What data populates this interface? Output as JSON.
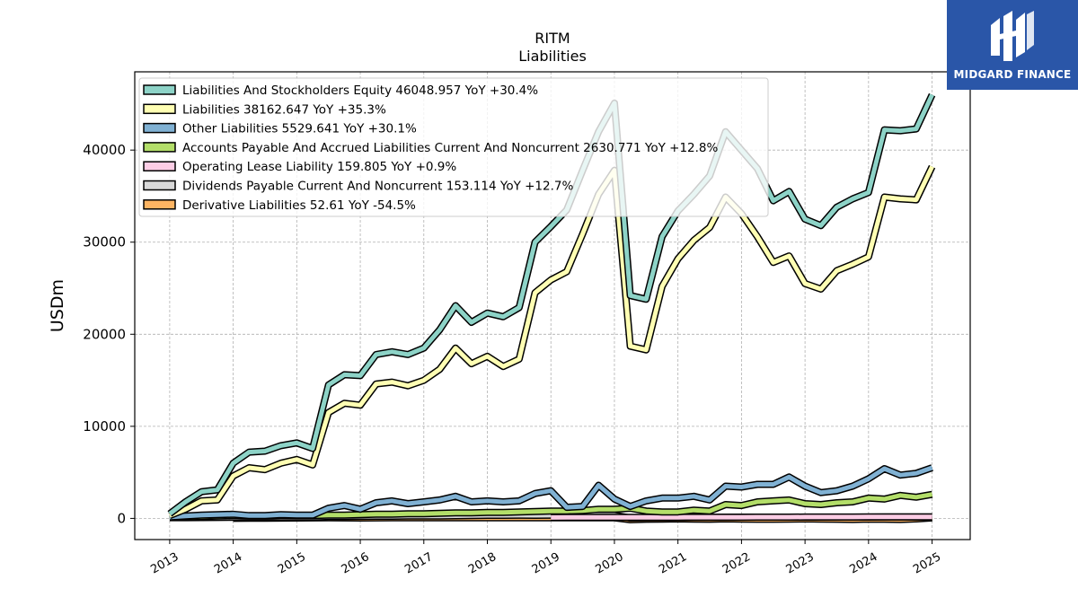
{
  "brand": {
    "name": "MIDGARD FINANCE",
    "bg_color": "#2a56a8"
  },
  "chart_data": {
    "type": "line",
    "title": "RITM",
    "subtitle": "Liabilities",
    "ylabel": "USDm",
    "xlabel": "",
    "ylim": [
      -2300,
      48500
    ],
    "xlim": [
      2012.45,
      2025.6
    ],
    "yticks": [
      0,
      10000,
      20000,
      30000,
      40000
    ],
    "xticks": [
      "2013",
      "2014",
      "2015",
      "2016",
      "2017",
      "2018",
      "2019",
      "2020",
      "2021",
      "2022",
      "2023",
      "2024",
      "2025"
    ],
    "grid": true,
    "legend_position": "top-left",
    "series": [
      {
        "name": "Liabilities And Stockholders Equity",
        "legend_label": "Liabilities And Stockholders Equity  46048.957 YoY +30.4%",
        "color": "#8dd3c7",
        "x": [
          2013.0,
          2013.25,
          2013.5,
          2013.75,
          2014.0,
          2014.25,
          2014.5,
          2014.75,
          2015.0,
          2015.25,
          2015.5,
          2015.75,
          2016.0,
          2016.25,
          2016.5,
          2016.75,
          2017.0,
          2017.25,
          2017.5,
          2017.75,
          2018.0,
          2018.25,
          2018.5,
          2018.75,
          2019.0,
          2019.25,
          2019.5,
          2019.75,
          2020.0,
          2020.25,
          2020.5,
          2020.75,
          2021.0,
          2021.25,
          2021.5,
          2021.75,
          2022.0,
          2022.25,
          2022.5,
          2022.75,
          2023.0,
          2023.25,
          2023.5,
          2023.75,
          2024.0,
          2024.25,
          2024.5,
          2024.75,
          2025.0
        ],
        "values": [
          500,
          1800,
          2900,
          3100,
          6000,
          7200,
          7300,
          7900,
          8200,
          7600,
          14500,
          15600,
          15500,
          17800,
          18100,
          17800,
          18500,
          20500,
          23100,
          21300,
          22300,
          21900,
          22900,
          30000,
          31700,
          33500,
          37800,
          42000,
          45100,
          24200,
          23800,
          30600,
          33400,
          35200,
          37200,
          42000,
          40000,
          38000,
          34500,
          35500,
          32500,
          31800,
          33800,
          34700,
          35400,
          42200,
          42100,
          42300,
          46000
        ]
      },
      {
        "name": "Liabilities",
        "legend_label": "Liabilities  38162.647 YoY +35.3%",
        "color": "#ffffb3",
        "x": [
          2013.0,
          2013.25,
          2013.5,
          2013.75,
          2014.0,
          2014.25,
          2014.5,
          2014.75,
          2015.0,
          2015.25,
          2015.5,
          2015.75,
          2016.0,
          2016.25,
          2016.5,
          2016.75,
          2017.0,
          2017.25,
          2017.5,
          2017.75,
          2018.0,
          2018.25,
          2018.5,
          2018.75,
          2019.0,
          2019.25,
          2019.5,
          2019.75,
          2020.0,
          2020.25,
          2020.5,
          2020.75,
          2021.0,
          2021.25,
          2021.5,
          2021.75,
          2022.0,
          2022.25,
          2022.5,
          2022.75,
          2023.0,
          2023.25,
          2023.5,
          2023.75,
          2024.0,
          2024.25,
          2024.5,
          2024.75,
          2025.0
        ],
        "values": [
          300,
          1000,
          1900,
          2000,
          4600,
          5500,
          5300,
          6000,
          6400,
          5800,
          11500,
          12500,
          12300,
          14600,
          14800,
          14400,
          15000,
          16200,
          18500,
          16800,
          17600,
          16500,
          17300,
          24500,
          25900,
          26800,
          30900,
          35200,
          37800,
          18700,
          18300,
          25200,
          28200,
          30200,
          31600,
          34900,
          33100,
          30600,
          27800,
          28500,
          25500,
          24900,
          26900,
          27600,
          28400,
          34900,
          34700,
          34600,
          38200
        ]
      },
      {
        "name": "Other Liabilities",
        "legend_label": "Other Liabilities  5529.641 YoY +30.1%",
        "color": "#80b1d3",
        "x": [
          2013.0,
          2013.25,
          2013.5,
          2013.75,
          2014.0,
          2014.25,
          2014.5,
          2014.75,
          2015.0,
          2015.25,
          2015.5,
          2015.75,
          2016.0,
          2016.25,
          2016.5,
          2016.75,
          2017.0,
          2017.25,
          2017.5,
          2017.75,
          2018.0,
          2018.25,
          2018.5,
          2018.75,
          2019.0,
          2019.25,
          2019.5,
          2019.75,
          2020.0,
          2020.25,
          2020.5,
          2020.75,
          2021.0,
          2021.25,
          2021.5,
          2021.75,
          2022.0,
          2022.25,
          2022.5,
          2022.75,
          2023.0,
          2023.25,
          2023.5,
          2023.75,
          2024.0,
          2024.25,
          2024.5,
          2024.75,
          2025.0
        ],
        "values": [
          150,
          250,
          350,
          400,
          450,
          300,
          300,
          400,
          350,
          350,
          1100,
          1400,
          1000,
          1700,
          1900,
          1600,
          1800,
          2000,
          2400,
          1800,
          1900,
          1800,
          1900,
          2700,
          3000,
          1200,
          1300,
          3600,
          2100,
          1300,
          1900,
          2200,
          2200,
          2400,
          2000,
          3500,
          3400,
          3700,
          3700,
          4500,
          3500,
          2800,
          3000,
          3500,
          4300,
          5400,
          4700,
          4900,
          5500
        ]
      },
      {
        "name": "Accounts Payable And Accrued Liabilities Current And Noncurrent",
        "legend_label": "Accounts Payable And Accrued Liabilities Current And Noncurrent  2630.771 YoY +12.8%",
        "color": "#b3de69",
        "x": [
          2013.0,
          2013.25,
          2013.5,
          2013.75,
          2014.0,
          2014.25,
          2014.5,
          2014.75,
          2015.0,
          2015.25,
          2015.5,
          2015.75,
          2016.0,
          2016.25,
          2016.5,
          2016.75,
          2017.0,
          2017.25,
          2017.5,
          2017.75,
          2018.0,
          2018.25,
          2018.5,
          2018.75,
          2019.0,
          2019.25,
          2019.5,
          2019.75,
          2020.0,
          2020.25,
          2020.5,
          2020.75,
          2021.0,
          2021.25,
          2021.5,
          2021.75,
          2022.0,
          2022.25,
          2022.5,
          2022.75,
          2023.0,
          2023.25,
          2023.5,
          2023.75,
          2024.0,
          2024.25,
          2024.5,
          2024.75,
          2025.0
        ],
        "values": [
          100,
          150,
          200,
          250,
          300,
          250,
          250,
          300,
          300,
          300,
          350,
          350,
          400,
          450,
          450,
          500,
          500,
          550,
          600,
          600,
          650,
          650,
          700,
          750,
          800,
          800,
          850,
          1000,
          1000,
          1100,
          800,
          700,
          700,
          900,
          800,
          1500,
          1400,
          1800,
          1900,
          2000,
          1600,
          1500,
          1700,
          1800,
          2200,
          2100,
          2500,
          2300,
          2600
        ]
      },
      {
        "name": "Operating Lease Liability",
        "legend_label": "Operating Lease Liability  159.805 YoY +0.9%",
        "color": "#fccde5",
        "x": [
          2019.0,
          2019.25,
          2019.5,
          2019.75,
          2020.0,
          2020.25,
          2020.5,
          2020.75,
          2021.0,
          2021.25,
          2021.5,
          2021.75,
          2022.0,
          2022.25,
          2022.5,
          2022.75,
          2023.0,
          2023.25,
          2023.5,
          2023.75,
          2024.0,
          2024.25,
          2024.5,
          2024.75,
          2025.0
        ],
        "values": [
          100,
          105,
          110,
          110,
          115,
          115,
          115,
          120,
          120,
          125,
          125,
          130,
          130,
          135,
          140,
          140,
          145,
          145,
          150,
          150,
          155,
          155,
          158,
          158,
          160
        ]
      },
      {
        "name": "Dividends Payable Current And Noncurrent",
        "legend_label": "Dividends Payable Current And Noncurrent  153.114 YoY +12.7%",
        "color": "#d9d9d9",
        "x": [
          2013.0,
          2013.25,
          2013.5,
          2013.75,
          2014.0,
          2014.25,
          2014.5,
          2014.75,
          2015.0,
          2015.25,
          2015.5,
          2015.75,
          2016.0,
          2016.25,
          2016.5,
          2016.75,
          2017.0,
          2017.25,
          2017.5,
          2017.75,
          2018.0,
          2018.25,
          2018.5,
          2018.75,
          2019.0,
          2019.25,
          2019.5,
          2019.75,
          2020.0,
          2020.25,
          2020.5,
          2020.75,
          2021.0,
          2021.25,
          2021.5,
          2021.75,
          2022.0,
          2022.25,
          2022.5,
          2022.75,
          2023.0,
          2023.25,
          2023.5,
          2023.75,
          2024.0,
          2024.25,
          2024.5,
          2024.75,
          2025.0
        ],
        "values": [
          80,
          80,
          90,
          100,
          120,
          130,
          130,
          130,
          140,
          140,
          200,
          200,
          230,
          240,
          240,
          250,
          250,
          260,
          280,
          300,
          330,
          330,
          340,
          330,
          340,
          340,
          340,
          340,
          340,
          40,
          60,
          80,
          100,
          110,
          110,
          130,
          140,
          140,
          140,
          140,
          140,
          140,
          140,
          140,
          140,
          150,
          150,
          150,
          150
        ]
      },
      {
        "name": "Derivative Liabilities",
        "legend_label": "Derivative Liabilities  52.61 YoY -54.5%",
        "color": "#fdb462",
        "x": [
          2014.0,
          2014.25,
          2014.5,
          2014.75,
          2015.0,
          2015.25,
          2015.5,
          2015.75,
          2016.0,
          2016.25,
          2016.5,
          2016.75,
          2017.0,
          2017.25,
          2017.5,
          2017.75,
          2018.0,
          2018.25,
          2018.5,
          2018.75,
          2019.0,
          2019.25,
          2019.5,
          2019.75,
          2020.0,
          2020.25,
          2020.5,
          2020.75,
          2021.0,
          2021.25,
          2021.5,
          2021.75,
          2022.0,
          2022.25,
          2022.5,
          2022.75,
          2023.0,
          2023.25,
          2023.5,
          2023.75,
          2024.0,
          2024.25,
          2024.5,
          2024.75,
          2025.0
        ],
        "values": [
          0,
          10,
          20,
          30,
          40,
          50,
          60,
          50,
          40,
          50,
          60,
          60,
          60,
          70,
          70,
          60,
          60,
          60,
          60,
          70,
          60,
          60,
          60,
          60,
          60,
          -150,
          -100,
          -80,
          -60,
          -80,
          -100,
          -60,
          -80,
          -100,
          -100,
          -80,
          -60,
          -80,
          -100,
          -120,
          -80,
          -100,
          -120,
          -60,
          50
        ]
      }
    ]
  }
}
